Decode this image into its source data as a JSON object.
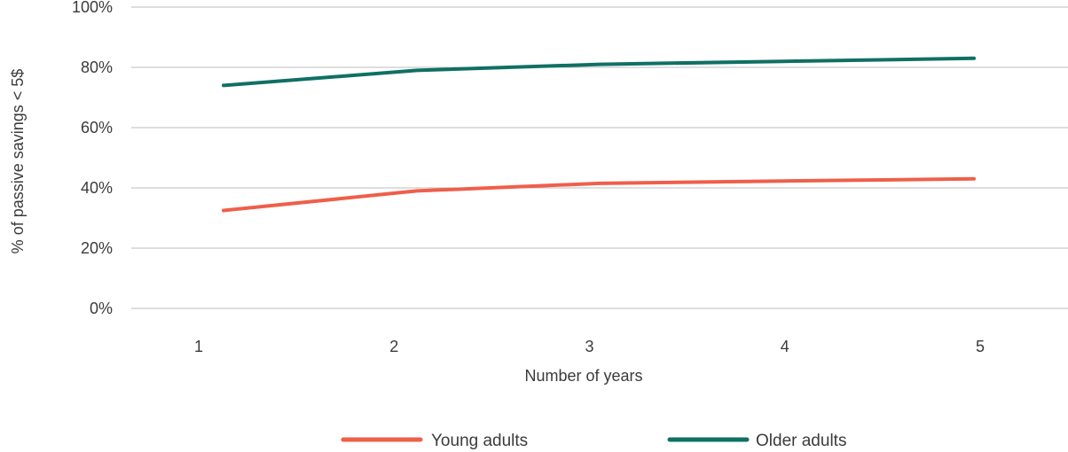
{
  "chart_data": {
    "type": "line",
    "title": "",
    "xlabel": "Number of years",
    "ylabel": "% of passive savings < 5$",
    "x": [
      1,
      2,
      3,
      4,
      5
    ],
    "x_tick_labels": [
      "1",
      "2",
      "3",
      "4",
      "5"
    ],
    "ylim": [
      0,
      100
    ],
    "y_ticks": [
      0,
      20,
      40,
      60,
      80,
      100
    ],
    "y_tick_labels": [
      "0%",
      "20%",
      "40%",
      "60%",
      "80%",
      "100%"
    ],
    "grid": "horizontal",
    "legend": "bottom-center",
    "series": [
      {
        "name": "Young adults",
        "color": "#ef5f4a",
        "values": [
          32.5,
          39,
          41.5,
          42.3,
          43
        ]
      },
      {
        "name": "Older adults",
        "color": "#0f7064",
        "values": [
          74,
          79,
          81,
          82,
          83
        ]
      }
    ]
  }
}
